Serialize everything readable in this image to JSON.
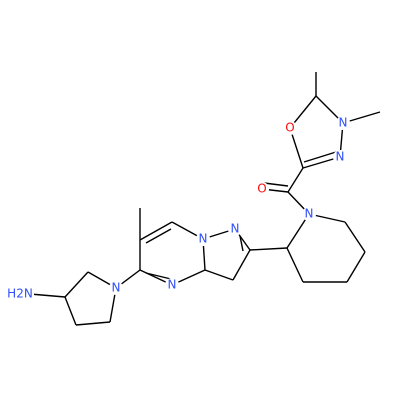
{
  "atoms": [
    {
      "label": "O"
    },
    {
      "label": "N"
    },
    {
      "label": "N"
    },
    {
      "label": "O"
    },
    {
      "label": "N"
    },
    {
      "label": "N"
    },
    {
      "label": "N"
    },
    {
      "label": "N"
    },
    {
      "label": "N"
    },
    {
      "label": "H2N"
    }
  ]
}
